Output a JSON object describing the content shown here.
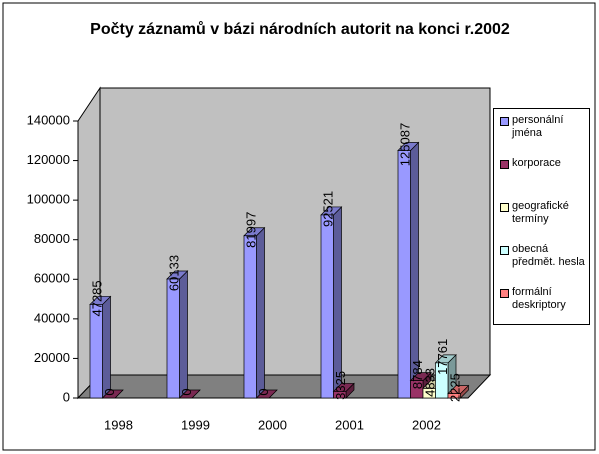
{
  "chart_data": {
    "type": "bar3d",
    "title": "Počty záznamů v bázi národních autorit na konci r.2002",
    "categories": [
      "1998",
      "1999",
      "2000",
      "2001",
      "2002"
    ],
    "series": [
      {
        "name": "personální jména",
        "color": "#9999ff",
        "values": [
          47285,
          60133,
          81997,
          92521,
          125087
        ]
      },
      {
        "name": "korporace",
        "color": "#993366",
        "values": [
          0,
          0,
          0,
          3325,
          8784
        ]
      },
      {
        "name": "geografické termíny",
        "color": "#ffffcc",
        "values": [
          null,
          null,
          null,
          null,
          4833
        ]
      },
      {
        "name": "obecná předmět. hesla",
        "color": "#ccffff",
        "values": [
          null,
          null,
          null,
          null,
          17761
        ]
      },
      {
        "name": "formální deskriptory",
        "color": "#ff8080",
        "values": [
          null,
          null,
          null,
          null,
          2225
        ]
      }
    ],
    "ylim": [
      0,
      140000
    ],
    "yticks": [
      0,
      20000,
      40000,
      60000,
      80000,
      100000,
      120000,
      140000
    ],
    "grid": false,
    "legend": "right"
  }
}
